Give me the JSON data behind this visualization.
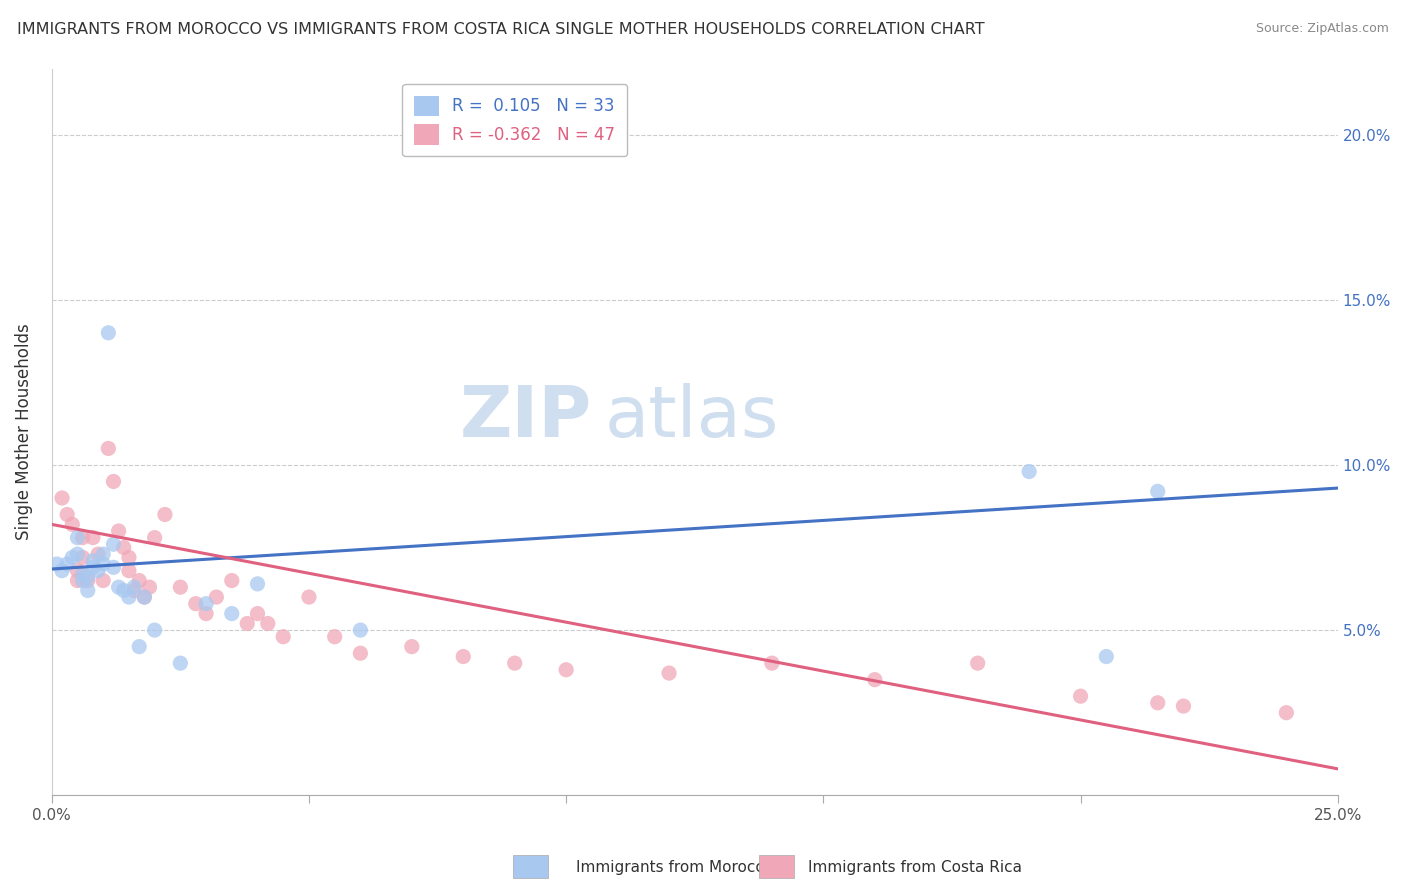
{
  "title": "IMMIGRANTS FROM MOROCCO VS IMMIGRANTS FROM COSTA RICA SINGLE MOTHER HOUSEHOLDS CORRELATION CHART",
  "source": "Source: ZipAtlas.com",
  "ylabel": "Single Mother Households",
  "xlim": [
    0.0,
    0.25
  ],
  "ylim": [
    0.0,
    0.22
  ],
  "ytick_vals": [
    0.0,
    0.05,
    0.1,
    0.15,
    0.2
  ],
  "xtick_vals": [
    0.0,
    0.05,
    0.1,
    0.15,
    0.2,
    0.25
  ],
  "xtick_labels": [
    "0.0%",
    "",
    "",
    "",
    "",
    "25.0%"
  ],
  "right_ytick_labels": [
    "",
    "5.0%",
    "10.0%",
    "15.0%",
    "20.0%"
  ],
  "legend_morocco": "R =  0.105   N = 33",
  "legend_costa_rica": "R = -0.362   N = 47",
  "morocco_color": "#a8c8f0",
  "costa_rica_color": "#f0a8b8",
  "trend_morocco_color": "#4472c4",
  "trend_costa_rica_color": "#e06080",
  "watermark_zip": "ZIP",
  "watermark_atlas": "atlas",
  "morocco_scatter_x": [
    0.001,
    0.002,
    0.003,
    0.004,
    0.005,
    0.005,
    0.006,
    0.006,
    0.007,
    0.007,
    0.008,
    0.008,
    0.009,
    0.01,
    0.01,
    0.011,
    0.012,
    0.012,
    0.013,
    0.014,
    0.015,
    0.016,
    0.017,
    0.018,
    0.02,
    0.025,
    0.03,
    0.035,
    0.04,
    0.06,
    0.19,
    0.205,
    0.215
  ],
  "morocco_scatter_y": [
    0.07,
    0.068,
    0.07,
    0.072,
    0.073,
    0.078,
    0.065,
    0.067,
    0.062,
    0.066,
    0.069,
    0.071,
    0.068,
    0.07,
    0.073,
    0.14,
    0.076,
    0.069,
    0.063,
    0.062,
    0.06,
    0.063,
    0.045,
    0.06,
    0.05,
    0.04,
    0.058,
    0.055,
    0.064,
    0.05,
    0.098,
    0.042,
    0.092
  ],
  "costa_rica_scatter_x": [
    0.002,
    0.003,
    0.004,
    0.005,
    0.005,
    0.006,
    0.006,
    0.007,
    0.008,
    0.009,
    0.01,
    0.011,
    0.012,
    0.013,
    0.014,
    0.015,
    0.015,
    0.016,
    0.017,
    0.018,
    0.019,
    0.02,
    0.022,
    0.025,
    0.028,
    0.03,
    0.032,
    0.035,
    0.038,
    0.04,
    0.042,
    0.045,
    0.05,
    0.055,
    0.06,
    0.07,
    0.08,
    0.09,
    0.1,
    0.12,
    0.14,
    0.16,
    0.18,
    0.2,
    0.215,
    0.22,
    0.24
  ],
  "costa_rica_scatter_y": [
    0.09,
    0.085,
    0.082,
    0.068,
    0.065,
    0.072,
    0.078,
    0.065,
    0.078,
    0.073,
    0.065,
    0.105,
    0.095,
    0.08,
    0.075,
    0.068,
    0.072,
    0.062,
    0.065,
    0.06,
    0.063,
    0.078,
    0.085,
    0.063,
    0.058,
    0.055,
    0.06,
    0.065,
    0.052,
    0.055,
    0.052,
    0.048,
    0.06,
    0.048,
    0.043,
    0.045,
    0.042,
    0.04,
    0.038,
    0.037,
    0.04,
    0.035,
    0.04,
    0.03,
    0.028,
    0.027,
    0.025
  ],
  "morocco_trend": [
    0.0685,
    0.093
  ],
  "costa_rica_trend": [
    0.082,
    0.008
  ]
}
